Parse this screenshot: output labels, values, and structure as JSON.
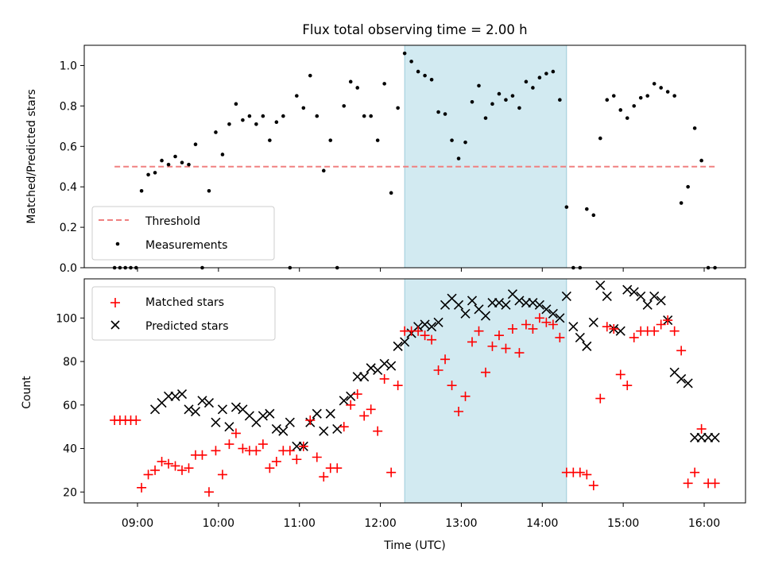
{
  "chart_data": {
    "title": "Flux total observing time = 2.00 h",
    "xlabel": "Time (UTC)",
    "x_ticks": [
      "09:00",
      "10:00",
      "11:00",
      "12:00",
      "13:00",
      "14:00",
      "15:00",
      "16:00"
    ],
    "highlight_window": {
      "start": "12:18",
      "end": "14:18",
      "color": "#add8e6"
    },
    "panels": [
      {
        "type": "scatter",
        "ylabel": "Matched/Predicted stars",
        "ylim": [
          0,
          1.1
        ],
        "y_ticks": [
          "0.0",
          "0.2",
          "0.4",
          "0.6",
          "0.8",
          "1.0"
        ],
        "legend_position": "lower-left",
        "threshold": {
          "name": "Threshold",
          "value": 0.5,
          "x_start": "08:43",
          "x_end": "16:10",
          "color": "#f08080"
        },
        "series": [
          {
            "name": "Measurements",
            "color": "#000000",
            "x": [
              "08:43",
              "08:47",
              "08:51",
              "08:55",
              "08:59",
              "09:03",
              "09:08",
              "09:13",
              "09:18",
              "09:23",
              "09:28",
              "09:33",
              "09:38",
              "09:43",
              "09:48",
              "09:53",
              "09:58",
              "10:03",
              "10:08",
              "10:13",
              "10:18",
              "10:23",
              "10:28",
              "10:33",
              "10:38",
              "10:43",
              "10:48",
              "10:53",
              "10:58",
              "11:03",
              "11:08",
              "11:13",
              "11:18",
              "11:23",
              "11:28",
              "11:33",
              "11:38",
              "11:43",
              "11:48",
              "11:53",
              "11:58",
              "12:03",
              "12:08",
              "12:13",
              "12:18",
              "12:23",
              "12:28",
              "12:33",
              "12:38",
              "12:43",
              "12:48",
              "12:53",
              "12:58",
              "13:03",
              "13:08",
              "13:13",
              "13:18",
              "13:23",
              "13:28",
              "13:33",
              "13:38",
              "13:43",
              "13:48",
              "13:53",
              "13:58",
              "14:03",
              "14:08",
              "14:13",
              "14:18",
              "14:23",
              "14:28",
              "14:33",
              "14:38",
              "14:43",
              "14:48",
              "14:53",
              "14:58",
              "15:03",
              "15:08",
              "15:13",
              "15:18",
              "15:23",
              "15:28",
              "15:33",
              "15:38",
              "15:43",
              "15:48",
              "15:53",
              "15:58",
              "16:03",
              "16:08"
            ],
            "y": [
              0,
              0,
              0,
              0,
              0,
              0.38,
              0.46,
              0.47,
              0.53,
              0.51,
              0.55,
              0.52,
              0.51,
              0.61,
              0,
              0.38,
              0.67,
              0.56,
              0.71,
              0.81,
              0.73,
              0.75,
              0.71,
              0.75,
              0.63,
              0.72,
              0.75,
              0,
              0.85,
              0.79,
              0.95,
              0.75,
              0.48,
              0.63,
              0,
              0.8,
              0.92,
              0.89,
              0.75,
              0.75,
              0.63,
              0.91,
              0.37,
              0.79,
              1.06,
              1.02,
              0.97,
              0.95,
              0.93,
              0.77,
              0.76,
              0.63,
              0.54,
              0.62,
              0.82,
              0.9,
              0.74,
              0.81,
              0.86,
              0.83,
              0.85,
              0.79,
              0.92,
              0.89,
              0.94,
              0.96,
              0.97,
              0.83,
              0.3,
              0,
              0,
              0.29,
              0.26,
              0.64,
              0.83,
              0.85,
              0.78,
              0.74,
              0.8,
              0.84,
              0.85,
              0.91,
              0.89,
              0.87,
              0.85,
              0.32,
              0.4,
              0.69,
              0.53,
              0,
              0
            ]
          }
        ]
      },
      {
        "type": "scatter",
        "ylabel": "Count",
        "ylim": [
          15,
          118
        ],
        "y_ticks": [
          "20",
          "40",
          "60",
          "80",
          "100"
        ],
        "legend_position": "upper-left",
        "series": [
          {
            "name": "Matched stars",
            "color": "#ff0000",
            "marker": "+",
            "x": [
              "08:43",
              "08:47",
              "08:51",
              "08:55",
              "08:59",
              "09:03",
              "09:08",
              "09:13",
              "09:18",
              "09:23",
              "09:28",
              "09:33",
              "09:38",
              "09:43",
              "09:48",
              "09:53",
              "09:58",
              "10:03",
              "10:08",
              "10:13",
              "10:18",
              "10:23",
              "10:28",
              "10:33",
              "10:38",
              "10:43",
              "10:48",
              "10:53",
              "10:58",
              "11:03",
              "11:08",
              "11:13",
              "11:18",
              "11:23",
              "11:28",
              "11:33",
              "11:38",
              "11:43",
              "11:48",
              "11:53",
              "11:58",
              "12:03",
              "12:08",
              "12:13",
              "12:18",
              "12:23",
              "12:28",
              "12:33",
              "12:38",
              "12:43",
              "12:48",
              "12:53",
              "12:58",
              "13:03",
              "13:08",
              "13:13",
              "13:18",
              "13:23",
              "13:28",
              "13:33",
              "13:38",
              "13:43",
              "13:48",
              "13:53",
              "13:58",
              "14:03",
              "14:08",
              "14:13",
              "14:18",
              "14:23",
              "14:28",
              "14:33",
              "14:38",
              "14:43",
              "14:48",
              "14:53",
              "14:58",
              "15:03",
              "15:08",
              "15:13",
              "15:18",
              "15:23",
              "15:28",
              "15:33",
              "15:38",
              "15:43",
              "15:48",
              "15:53",
              "15:58",
              "16:03",
              "16:08"
            ],
            "y": [
              53,
              53,
              53,
              53,
              53,
              22,
              28,
              30,
              34,
              33,
              32,
              30,
              31,
              37,
              37,
              20,
              39,
              28,
              42,
              47,
              40,
              39,
              39,
              42,
              31,
              34,
              39,
              39,
              35,
              41,
              53,
              36,
              27,
              31,
              31,
              50,
              60,
              65,
              55,
              58,
              48,
              72,
              29,
              69,
              94,
              94,
              94,
              92,
              90,
              76,
              81,
              69,
              57,
              64,
              89,
              94,
              75,
              87,
              92,
              86,
              95,
              84,
              97,
              95,
              100,
              98,
              97,
              91,
              29,
              29,
              29,
              28,
              23,
              63,
              96,
              95,
              74,
              69,
              91,
              94,
              94,
              94,
              97,
              99,
              94,
              85,
              24,
              29,
              49,
              24,
              24
            ]
          },
          {
            "name": "Predicted stars",
            "color": "#000000",
            "marker": "x",
            "x": [
              "09:13",
              "09:18",
              "09:23",
              "09:28",
              "09:33",
              "09:38",
              "09:43",
              "09:48",
              "09:53",
              "09:58",
              "10:03",
              "10:08",
              "10:13",
              "10:18",
              "10:23",
              "10:28",
              "10:33",
              "10:38",
              "10:43",
              "10:48",
              "10:53",
              "10:58",
              "11:03",
              "11:08",
              "11:13",
              "11:18",
              "11:23",
              "11:28",
              "11:33",
              "11:38",
              "11:43",
              "11:48",
              "11:53",
              "11:58",
              "12:03",
              "12:08",
              "12:13",
              "12:18",
              "12:23",
              "12:28",
              "12:33",
              "12:38",
              "12:43",
              "12:48",
              "12:53",
              "12:58",
              "13:03",
              "13:08",
              "13:13",
              "13:18",
              "13:23",
              "13:28",
              "13:33",
              "13:38",
              "13:43",
              "13:48",
              "13:53",
              "13:58",
              "14:03",
              "14:08",
              "14:13",
              "14:18",
              "14:23",
              "14:28",
              "14:33",
              "14:38",
              "14:43",
              "14:48",
              "14:53",
              "14:58",
              "15:03",
              "15:08",
              "15:13",
              "15:18",
              "15:23",
              "15:28",
              "15:33",
              "15:38",
              "15:43",
              "15:48",
              "15:53",
              "15:58",
              "16:03",
              "16:08"
            ],
            "y": [
              58,
              61,
              64,
              64,
              65,
              58,
              57,
              62,
              61,
              52,
              58,
              50,
              59,
              58,
              55,
              52,
              55,
              56,
              49,
              48,
              52,
              41,
              41,
              52,
              56,
              48,
              56,
              49,
              62,
              64,
              73,
              73,
              77,
              76,
              79,
              78,
              87,
              89,
              93,
              96,
              97,
              96,
              98,
              106,
              109,
              106,
              102,
              108,
              104,
              101,
              107,
              107,
              106,
              111,
              108,
              107,
              107,
              106,
              104,
              102,
              100,
              110,
              96,
              91,
              87,
              98,
              115,
              110,
              95,
              94,
              113,
              112,
              110,
              106,
              110,
              108,
              99,
              75,
              72,
              70,
              45,
              45,
              45,
              45
            ]
          }
        ]
      }
    ]
  }
}
